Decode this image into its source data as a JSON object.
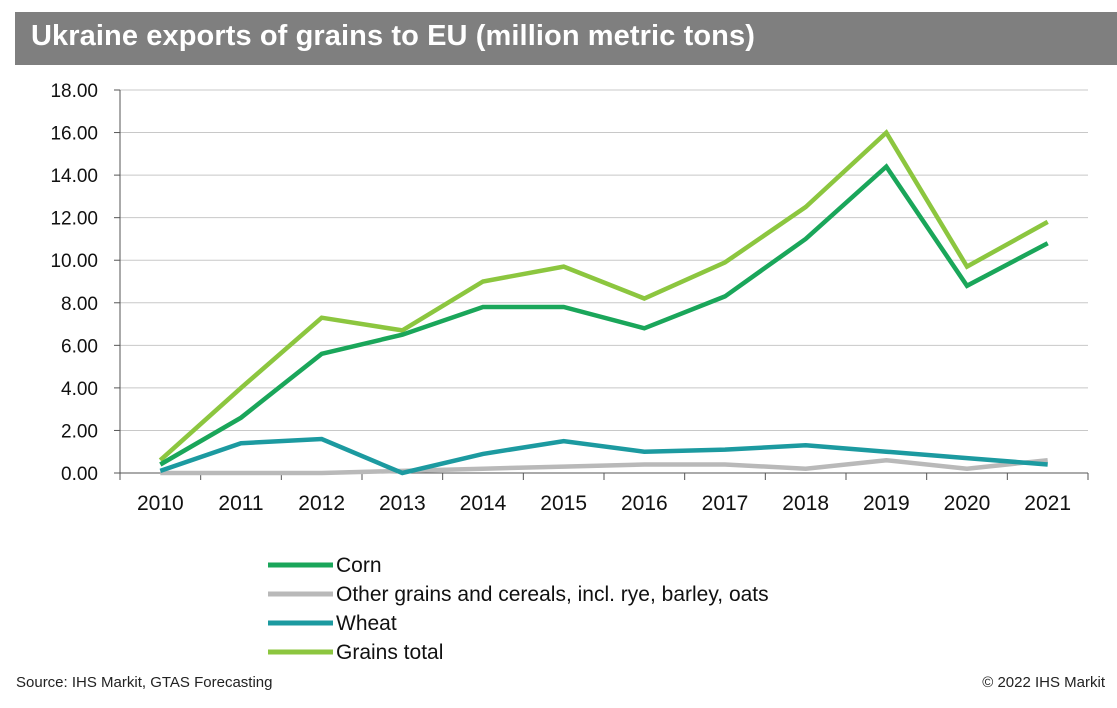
{
  "chart_data": {
    "type": "line",
    "title": "Ukraine exports of grains to EU (million metric tons)",
    "x": [
      "2010",
      "2011",
      "2012",
      "2013",
      "2014",
      "2015",
      "2016",
      "2017",
      "2018",
      "2019",
      "2020",
      "2021"
    ],
    "yticks": [
      "0.00",
      "2.00",
      "4.00",
      "6.00",
      "8.00",
      "10.00",
      "12.00",
      "14.00",
      "16.00",
      "18.00"
    ],
    "ylim": [
      0,
      18
    ],
    "grid": true,
    "legend_position": "bottom",
    "series": [
      {
        "name": "Corn",
        "color": "#1aa65a",
        "values": [
          0.4,
          2.6,
          5.6,
          6.5,
          7.8,
          7.8,
          6.8,
          8.3,
          11.0,
          14.4,
          8.8,
          10.8
        ]
      },
      {
        "name": "Other grains and cereals, incl. rye, barley, oats",
        "color": "#b9b9b9",
        "values": [
          0.0,
          0.0,
          0.0,
          0.1,
          0.2,
          0.3,
          0.4,
          0.4,
          0.2,
          0.6,
          0.2,
          0.6
        ]
      },
      {
        "name": "Wheat",
        "color": "#1c9aa0",
        "values": [
          0.1,
          1.4,
          1.6,
          0.0,
          0.9,
          1.5,
          1.0,
          1.1,
          1.3,
          1.0,
          0.7,
          0.4
        ]
      },
      {
        "name": "Grains total",
        "color": "#8cc63f",
        "values": [
          0.6,
          4.0,
          7.3,
          6.7,
          9.0,
          9.7,
          8.2,
          9.9,
          12.5,
          16.0,
          9.7,
          11.8
        ]
      }
    ]
  },
  "footer": {
    "source": "Source: IHS Markit, GTAS Forecasting",
    "copyright": "© 2022 IHS Markit"
  }
}
